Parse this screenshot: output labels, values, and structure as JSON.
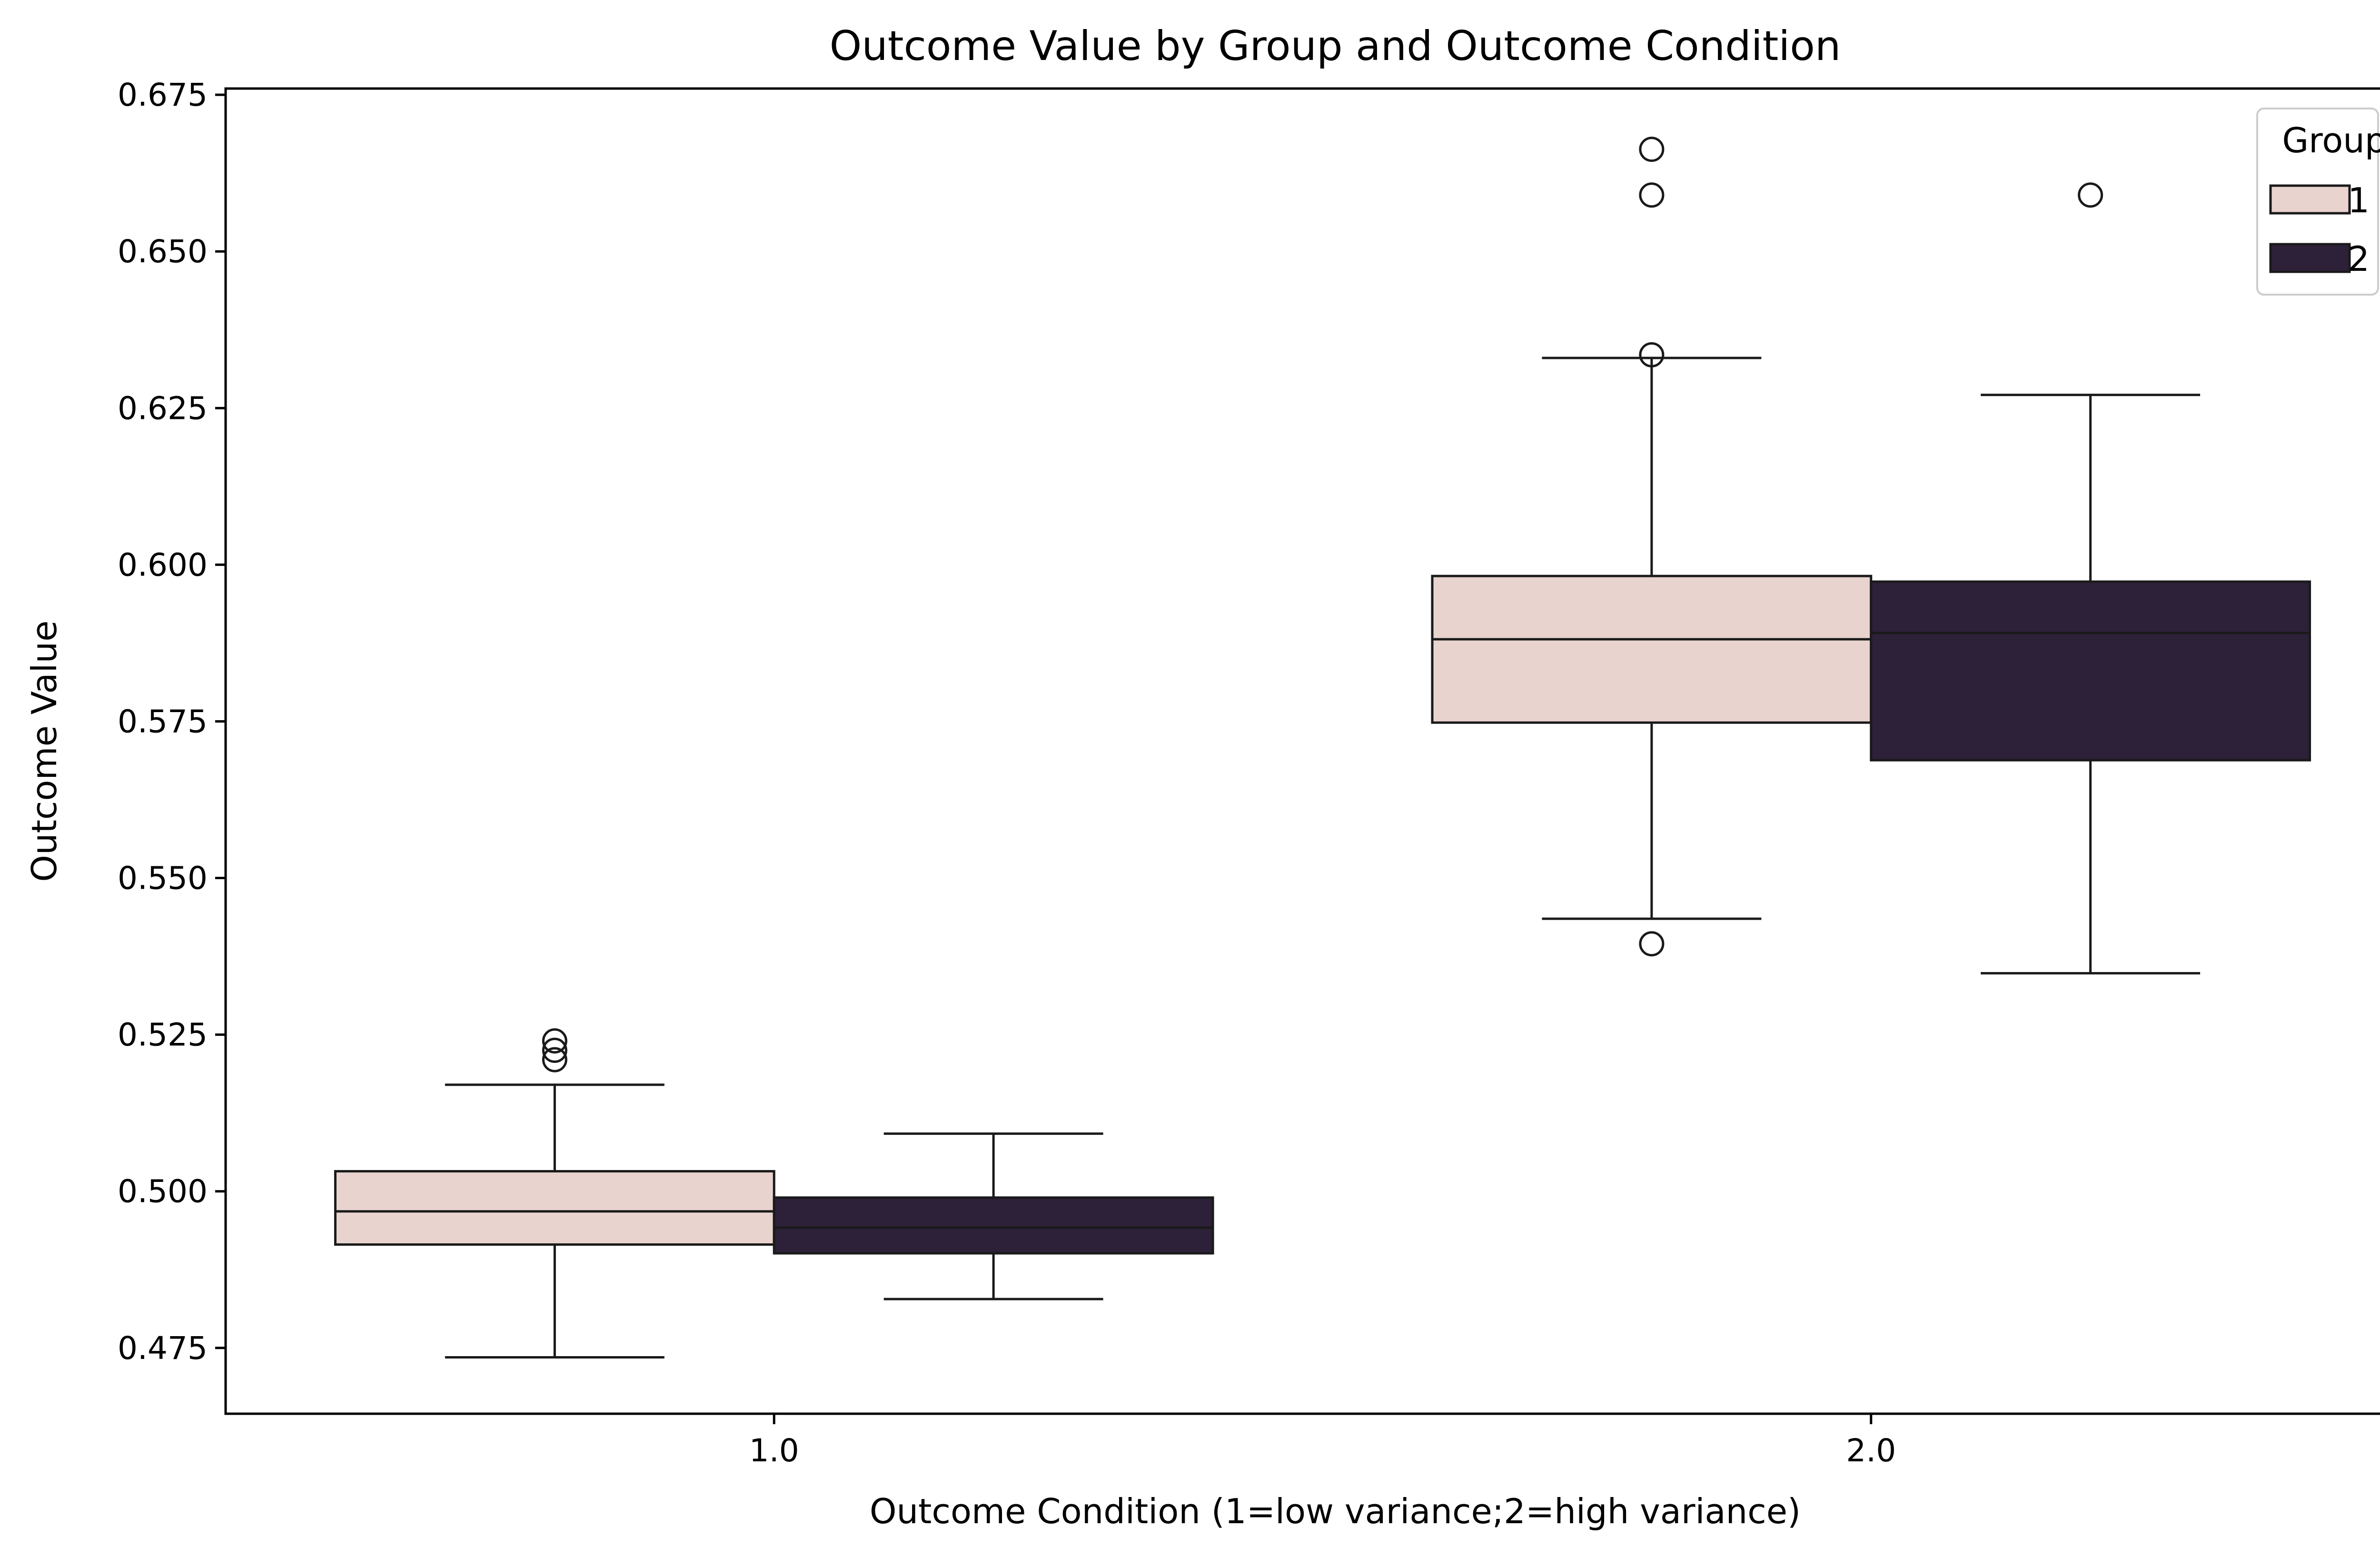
{
  "chart_data": {
    "type": "box",
    "title": "Outcome Value by Group and Outcome Condition",
    "xlabel": "Outcome Condition (1=low variance;2=high variance)",
    "ylabel": "Outcome Value",
    "categories": [
      "1.0",
      "2.0"
    ],
    "ylim": [
      0.4645,
      0.676
    ],
    "y_ticks": [
      0.475,
      0.5,
      0.525,
      0.55,
      0.575,
      0.6,
      0.625,
      0.65,
      0.675
    ],
    "y_tick_labels": [
      "0.475",
      "0.500",
      "0.525",
      "0.550",
      "0.575",
      "0.600",
      "0.625",
      "0.650",
      "0.675"
    ],
    "grid": false,
    "legend": {
      "title": "Group",
      "position": "top-right"
    },
    "series": [
      {
        "name": "1",
        "color": "#e8d3cf",
        "boxes": [
          {
            "category": "1.0",
            "whisker_low": 0.4735,
            "q1": 0.4915,
            "median": 0.4968,
            "q3": 0.5032,
            "whisker_high": 0.517,
            "outliers": [
              0.521,
              0.5225,
              0.524
            ]
          },
          {
            "category": "2.0",
            "whisker_low": 0.5435,
            "q1": 0.5748,
            "median": 0.5881,
            "q3": 0.5982,
            "whisker_high": 0.633,
            "outliers": [
              0.5395,
              0.6335,
              0.659,
              0.6663
            ]
          }
        ]
      },
      {
        "name": "2",
        "color": "#2d2039",
        "boxes": [
          {
            "category": "1.0",
            "whisker_low": 0.4828,
            "q1": 0.4901,
            "median": 0.4942,
            "q3": 0.499,
            "whisker_high": 0.5092,
            "outliers": []
          },
          {
            "category": "2.0",
            "whisker_low": 0.5348,
            "q1": 0.5688,
            "median": 0.5891,
            "q3": 0.5973,
            "whisker_high": 0.6271,
            "outliers": [
              0.659
            ]
          }
        ]
      }
    ]
  }
}
